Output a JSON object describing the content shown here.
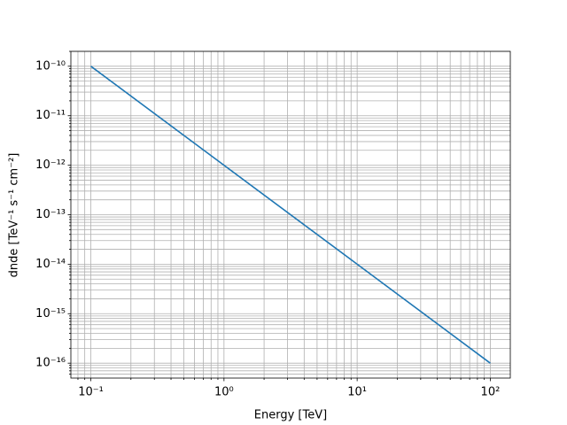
{
  "chart_data": {
    "type": "line",
    "xlabel": "Energy [TeV]",
    "ylabel": "dnde [TeV⁻¹ s⁻¹ cm⁻²]",
    "log_x": true,
    "log_y": true,
    "grid": true,
    "x": [
      0.1,
      1,
      10,
      100
    ],
    "series": [
      {
        "color": "#1f77b4",
        "values": [
          1e-10,
          1e-12,
          1e-14,
          1e-16
        ]
      }
    ],
    "xlim": [
      0.0708,
      141.3
    ],
    "ylim": [
      5e-17,
      2e-10
    ],
    "xticks": [
      {
        "value": 0.1,
        "label": "10⁻¹"
      },
      {
        "value": 1,
        "label": "10⁰"
      },
      {
        "value": 10,
        "label": "10¹"
      },
      {
        "value": 100,
        "label": "10²"
      }
    ],
    "yticks": [
      {
        "value": 1e-16,
        "label": "10⁻¹⁶"
      },
      {
        "value": 1e-15,
        "label": "10⁻¹⁵"
      },
      {
        "value": 1e-14,
        "label": "10⁻¹⁴"
      },
      {
        "value": 1e-13,
        "label": "10⁻¹³"
      },
      {
        "value": 1e-12,
        "label": "10⁻¹²"
      },
      {
        "value": 1e-11,
        "label": "10⁻¹¹"
      },
      {
        "value": 1e-10,
        "label": "10⁻¹⁰"
      }
    ],
    "xminorticks": [
      0.08,
      0.09,
      0.2,
      0.3,
      0.4,
      0.5,
      0.6,
      0.7,
      0.8,
      0.9,
      2,
      3,
      4,
      5,
      6,
      7,
      8,
      9,
      20,
      30,
      40,
      50,
      60,
      70,
      80,
      90
    ],
    "yminorticks": [
      6e-17,
      7e-17,
      8e-17,
      9e-17,
      2e-16,
      3e-16,
      4e-16,
      5e-16,
      6e-16,
      7e-16,
      8e-16,
      9e-16,
      2e-15,
      3e-15,
      4e-15,
      5e-15,
      6e-15,
      7e-15,
      8e-15,
      9e-15,
      2e-14,
      3e-14,
      4e-14,
      5e-14,
      6e-14,
      7e-14,
      8e-14,
      9e-14,
      2e-13,
      3e-13,
      4e-13,
      5e-13,
      6e-13,
      7e-13,
      8e-13,
      9e-13,
      2e-12,
      3e-12,
      4e-12,
      5e-12,
      6e-12,
      7e-12,
      8e-12,
      9e-12,
      2e-11,
      3e-11,
      4e-11,
      5e-11,
      6e-11,
      7e-11,
      8e-11,
      9e-11,
      2e-10
    ]
  }
}
